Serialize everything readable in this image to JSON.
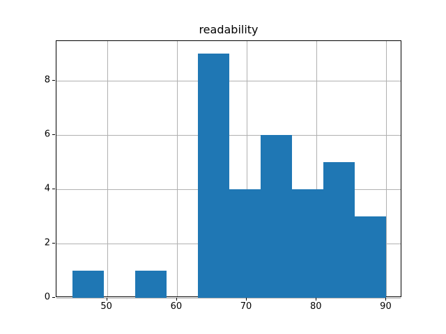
{
  "chart_data": {
    "type": "bar",
    "subtype": "histogram",
    "title": "readability",
    "xlabel": "",
    "ylabel": "",
    "bin_edges": [
      45,
      49.5,
      54,
      58.5,
      63,
      67.5,
      72,
      76.5,
      81,
      85.5,
      90
    ],
    "counts": [
      1,
      0,
      1,
      0,
      9,
      4,
      6,
      4,
      5,
      3
    ],
    "xticks": [
      50,
      60,
      70,
      80,
      90
    ],
    "yticks": [
      0,
      2,
      4,
      6,
      8
    ],
    "xlim": [
      42.75,
      92.25
    ],
    "ylim": [
      0,
      9.45
    ],
    "grid": true,
    "grid_color": "#b0b0b0",
    "bar_color": "#1f77b4",
    "background_color": "#ffffff",
    "legend": null
  }
}
